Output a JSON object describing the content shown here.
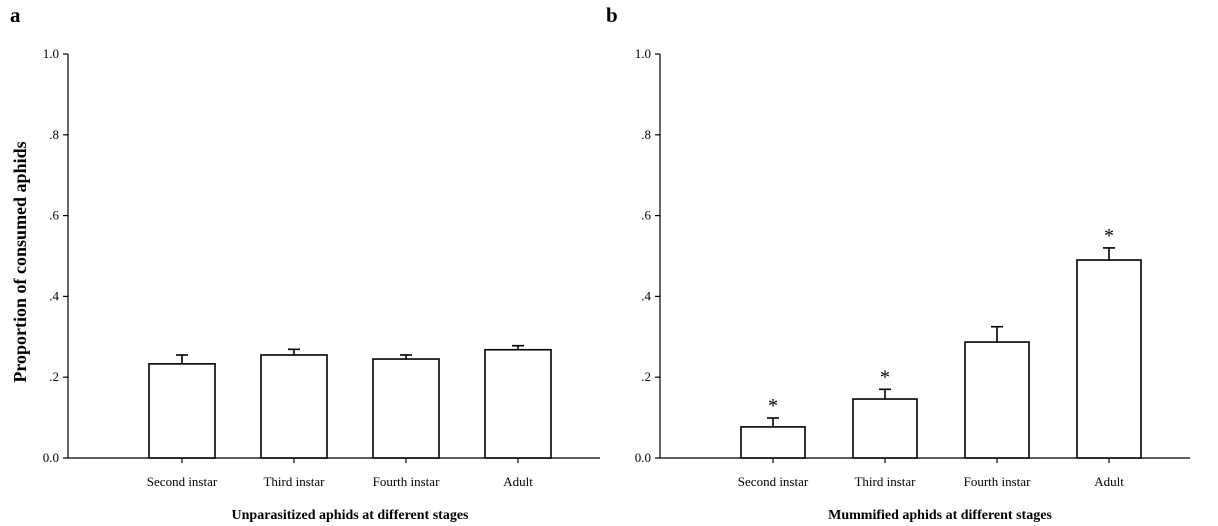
{
  "chart_data": [
    {
      "type": "bar",
      "panel": "a",
      "title": "",
      "xlabel": "Unparasitized aphids at different stages",
      "ylabel": "Proportion of consumed aphids",
      "categories": [
        "Second instar",
        "Third instar",
        "Fourth instar",
        "Adult"
      ],
      "values": [
        0.233,
        0.255,
        0.245,
        0.268
      ],
      "errors": [
        0.022,
        0.014,
        0.01,
        0.01
      ],
      "significance": [
        "",
        "",
        "",
        ""
      ],
      "ylim": [
        0,
        1.0
      ],
      "yticks": [
        0,
        0.2,
        0.4,
        0.6,
        0.8,
        1.0
      ],
      "yticklabels": [
        "0.0",
        ".2",
        ".4",
        ".6",
        ".8",
        "1.0"
      ],
      "grid": false,
      "bar_color": "#ffffff",
      "edge_color": "#000000"
    },
    {
      "type": "bar",
      "panel": "b",
      "title": "",
      "xlabel": "Mummified aphids at different stages",
      "ylabel": "",
      "categories": [
        "Second instar",
        "Third instar",
        "Fourth instar",
        "Adult"
      ],
      "values": [
        0.077,
        0.146,
        0.287,
        0.49
      ],
      "errors": [
        0.022,
        0.024,
        0.038,
        0.03
      ],
      "significance": [
        "*",
        "*",
        "",
        "*"
      ],
      "ylim": [
        0,
        1.0
      ],
      "yticks": [
        0,
        0.2,
        0.4,
        0.6,
        0.8,
        1.0
      ],
      "yticklabels": [
        "0.0",
        ".2",
        ".4",
        ".6",
        ".8",
        "1.0"
      ],
      "grid": false,
      "bar_color": "#ffffff",
      "edge_color": "#000000"
    }
  ]
}
